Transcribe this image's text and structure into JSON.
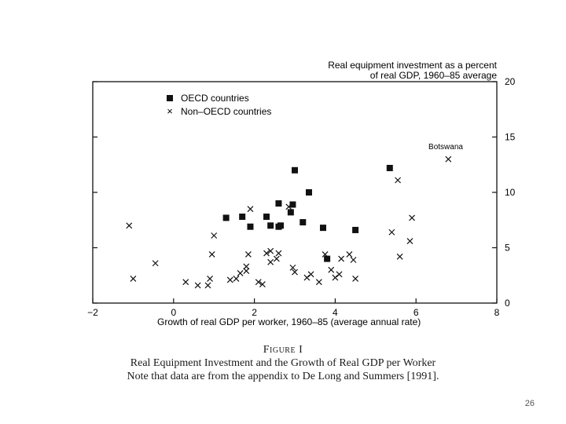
{
  "chart_data": {
    "type": "scatter",
    "ylabel_line1": "Real equipment investment as a percent",
    "ylabel_line2": "of real GDP, 1960–85 average",
    "xlabel": "Growth of real GDP per worker, 1960–85 (average annual rate)",
    "xlim": [
      -2,
      8
    ],
    "ylim": [
      0,
      20
    ],
    "xticks": [
      "−2",
      "0",
      "2",
      "4",
      "6",
      "8"
    ],
    "yticks": [
      "0",
      "5",
      "10",
      "15",
      "20"
    ],
    "legend_position": "top-left",
    "annotation": "Botswana",
    "series": [
      {
        "name": "OECD countries",
        "marker": "square",
        "points": [
          [
            1.3,
            7.7
          ],
          [
            1.7,
            7.8
          ],
          [
            1.9,
            6.9
          ],
          [
            2.3,
            7.8
          ],
          [
            2.4,
            7.0
          ],
          [
            2.6,
            9.0
          ],
          [
            2.6,
            6.9
          ],
          [
            2.65,
            7.0
          ],
          [
            2.9,
            8.2
          ],
          [
            2.95,
            8.9
          ],
          [
            3.0,
            12.0
          ],
          [
            3.2,
            7.3
          ],
          [
            3.35,
            10.0
          ],
          [
            3.7,
            6.8
          ],
          [
            3.8,
            4.0
          ],
          [
            4.5,
            6.6
          ],
          [
            5.35,
            12.2
          ]
        ]
      },
      {
        "name": "Non–OECD countries",
        "marker": "x",
        "points": [
          [
            -1.1,
            7.0
          ],
          [
            -1.0,
            2.2
          ],
          [
            -0.45,
            3.6
          ],
          [
            0.3,
            1.9
          ],
          [
            0.6,
            1.6
          ],
          [
            0.85,
            1.6
          ],
          [
            0.9,
            2.2
          ],
          [
            0.95,
            4.4
          ],
          [
            1.0,
            6.1
          ],
          [
            1.4,
            2.1
          ],
          [
            1.55,
            2.2
          ],
          [
            1.65,
            2.7
          ],
          [
            1.8,
            2.9
          ],
          [
            1.8,
            3.3
          ],
          [
            1.85,
            4.4
          ],
          [
            1.9,
            8.5
          ],
          [
            2.1,
            1.9
          ],
          [
            2.2,
            1.7
          ],
          [
            2.3,
            4.5
          ],
          [
            2.4,
            4.7
          ],
          [
            2.4,
            3.7
          ],
          [
            2.55,
            4.0
          ],
          [
            2.6,
            4.5
          ],
          [
            2.85,
            8.7
          ],
          [
            2.95,
            3.2
          ],
          [
            3.0,
            2.8
          ],
          [
            3.3,
            2.3
          ],
          [
            3.4,
            2.6
          ],
          [
            3.6,
            1.9
          ],
          [
            3.75,
            4.4
          ],
          [
            3.9,
            3.0
          ],
          [
            4.0,
            2.3
          ],
          [
            4.1,
            2.6
          ],
          [
            4.15,
            4.0
          ],
          [
            4.35,
            4.4
          ],
          [
            4.45,
            3.9
          ],
          [
            4.5,
            2.2
          ],
          [
            5.4,
            6.4
          ],
          [
            5.55,
            11.1
          ],
          [
            5.6,
            4.2
          ],
          [
            5.85,
            5.6
          ],
          [
            5.9,
            7.7
          ],
          [
            6.8,
            13.0
          ]
        ]
      }
    ]
  },
  "caption": {
    "figure_label": "Figure I",
    "title": "Real Equipment Investment and the Growth of Real GDP per Worker",
    "note": "Note that data are from the appendix to De Long and Summers [1991]."
  },
  "page_number": "26"
}
